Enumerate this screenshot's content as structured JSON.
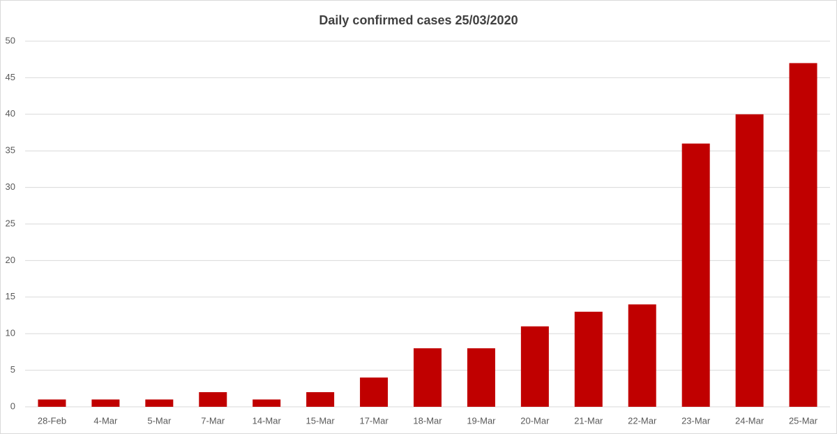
{
  "chart_data": {
    "type": "bar",
    "title": "Daily confirmed cases 25/03/2020",
    "categories": [
      "28-Feb",
      "4-Mar",
      "5-Mar",
      "7-Mar",
      "14-Mar",
      "15-Mar",
      "17-Mar",
      "18-Mar",
      "19-Mar",
      "20-Mar",
      "21-Mar",
      "22-Mar",
      "23-Mar",
      "24-Mar",
      "25-Mar"
    ],
    "values": [
      1,
      1,
      1,
      2,
      1,
      2,
      4,
      8,
      8,
      11,
      13,
      14,
      36,
      40,
      47
    ],
    "color": "#c00000",
    "ylim": [
      0,
      50
    ],
    "yticks": [
      0,
      5,
      10,
      15,
      20,
      25,
      30,
      35,
      40,
      45,
      50
    ],
    "grid": true
  }
}
